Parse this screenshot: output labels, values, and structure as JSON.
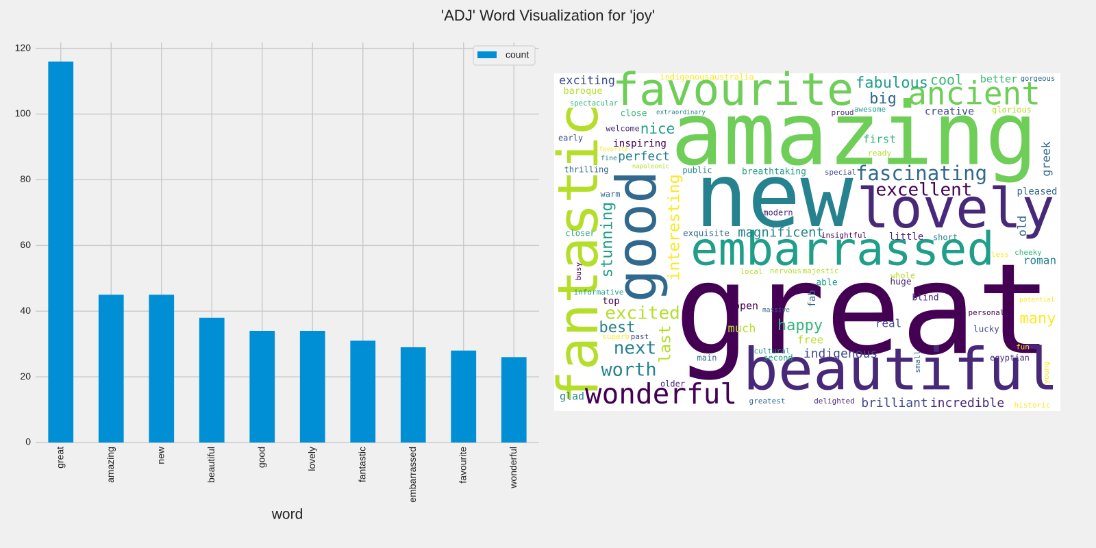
{
  "title": "'ADJ' Word Visualization for 'joy'",
  "chart_data": [
    {
      "type": "bar",
      "x_label": "word",
      "categories": [
        "great",
        "amazing",
        "new",
        "beautiful",
        "good",
        "lovely",
        "fantastic",
        "embarrassed",
        "favourite",
        "wonderful"
      ],
      "series": [
        {
          "name": "count",
          "color": "#008fd5",
          "values": [
            116,
            45,
            45,
            38,
            34,
            34,
            31,
            29,
            28,
            26
          ]
        }
      ],
      "ylim": [
        0,
        121.8
      ],
      "yticks": [
        0,
        20,
        40,
        60,
        80,
        100,
        120
      ],
      "grid": true,
      "legend": "upper right"
    },
    {
      "type": "wordcloud",
      "words": [
        "great",
        "amazing",
        "new",
        "beautiful",
        "favourite",
        "fantastic",
        "good",
        "lovely",
        "embarrassed",
        "wonderful",
        "ancient",
        "fabulous",
        "cool",
        "better",
        "gorgeous",
        "exciting",
        "indigenousaustralia",
        "baroque",
        "spectacular",
        "close",
        "extraordinary",
        "proud",
        "awesome",
        "creative",
        "glorious",
        "big",
        "welcome",
        "nice",
        "early",
        "inspiring",
        "favorite",
        "fine",
        "perfect",
        "first",
        "ready",
        "greek",
        "thrilling",
        "napoleonic",
        "public",
        "breathtaking",
        "special",
        "fascinating",
        "pleased",
        "excellent",
        "warm",
        "interesting",
        "stunning",
        "modern",
        "old",
        "exquisite",
        "magnificent",
        "insightful",
        "little",
        "short",
        "closer",
        "less",
        "cheeky",
        "roman",
        "busy",
        "nervous",
        "majestic",
        "local",
        "whole",
        "able",
        "informative",
        "huge",
        "blind",
        "top",
        "open",
        "fab",
        "massive",
        "potential",
        "excited",
        "personal",
        "many",
        "much",
        "happy",
        "best",
        "real",
        "lucky",
        "superb",
        "past",
        "free",
        "next",
        "fun",
        "main",
        "cultural",
        "second",
        "indigenous",
        "egyptian",
        "small",
        "young",
        "worth",
        "older",
        "glad",
        "greatest",
        "delighted",
        "brilliant",
        "incredible",
        "historic",
        "last"
      ]
    }
  ]
}
